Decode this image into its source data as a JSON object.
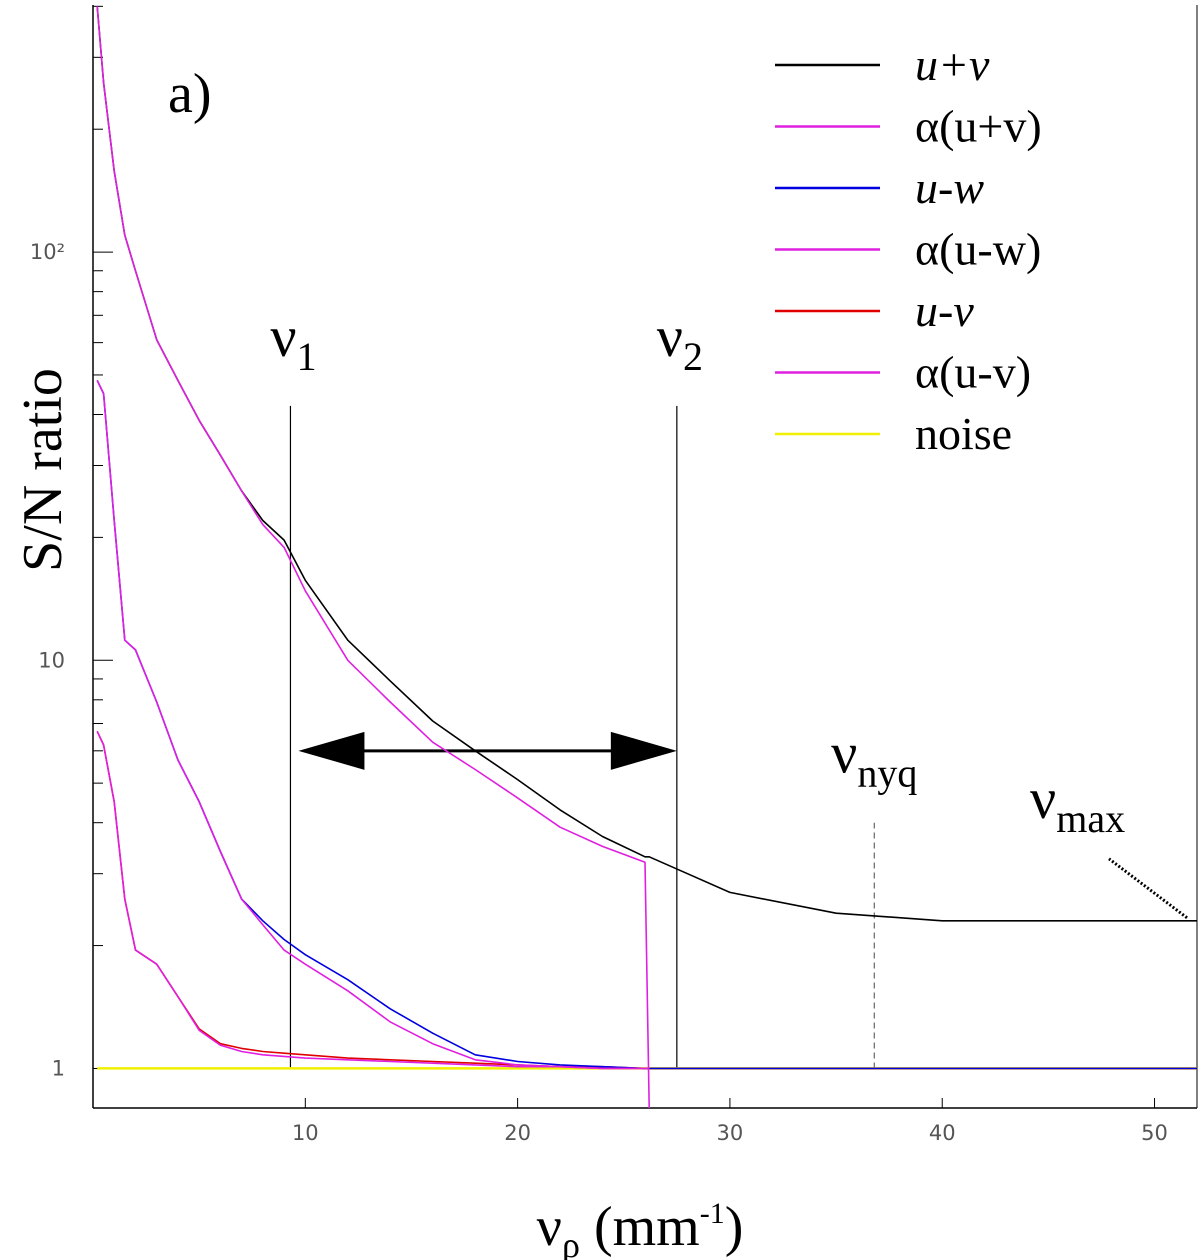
{
  "chart_data": {
    "type": "line",
    "panel_label": "a)",
    "ylabel": "S/N ratio",
    "xlabel": [
      "ν",
      "ρ",
      " (mm",
      "-1",
      ")"
    ],
    "yscale": "log",
    "legend": "upper right",
    "xlim": [
      0,
      52
    ],
    "ylim": [
      0.8,
      403
    ],
    "xticks": [
      10,
      20,
      30,
      40,
      50
    ],
    "yticks": [
      1,
      10,
      {
        "value": 100,
        "label": "10²"
      }
    ],
    "yminorticks": [
      2,
      3,
      4,
      5,
      6,
      7,
      8,
      9,
      20,
      30,
      40,
      50,
      60,
      70,
      80,
      90,
      200,
      300,
      400
    ],
    "x": [
      0.2,
      0.5,
      1,
      1.5,
      2,
      3,
      4,
      5,
      6,
      7,
      8,
      9,
      10,
      12,
      14,
      16,
      18,
      20,
      22,
      24,
      26,
      26.2,
      28,
      30,
      35,
      40,
      45,
      50,
      52
    ],
    "series": [
      {
        "name": "u+v",
        "color": "#000000",
        "values": [
          400,
          260,
          158,
          110,
          90,
          61,
          48.5,
          38.7,
          31.8,
          26,
          22,
          19.7,
          15.7,
          11.2,
          8.9,
          7.1,
          6.0,
          5.1,
          4.3,
          3.7,
          3.3,
          3.3,
          3.0,
          2.7,
          2.4,
          2.3,
          2.3,
          2.3,
          2.3
        ]
      },
      {
        "name": "α(u+v)",
        "color": "#e020e0",
        "values": [
          400,
          260,
          158,
          110,
          90,
          61,
          48.5,
          38.7,
          31.8,
          26,
          21.5,
          18.9,
          14.8,
          10.0,
          7.9,
          6.3,
          5.4,
          4.6,
          3.9,
          3.5,
          3.2,
          0.8,
          null,
          null,
          null,
          null,
          null,
          null,
          null
        ]
      },
      {
        "name": "u-w",
        "color": "#0000e0",
        "values": [
          48.5,
          45,
          22,
          11.2,
          10.6,
          7.9,
          5.7,
          4.5,
          3.4,
          2.6,
          2.3,
          2.07,
          1.9,
          1.65,
          1.4,
          1.22,
          1.08,
          1.04,
          1.02,
          1.01,
          1.0,
          1.0,
          1.0,
          1.0,
          1.0,
          1.0,
          1.0,
          1.0,
          1.0
        ]
      },
      {
        "name": "α(u-w)",
        "color": "#e020e0",
        "values": [
          48.5,
          45,
          22,
          11.2,
          10.6,
          7.9,
          5.7,
          4.5,
          3.4,
          2.6,
          2.25,
          1.95,
          1.8,
          1.55,
          1.3,
          1.15,
          1.05,
          1.02,
          1.01,
          1.0,
          1.0,
          1.0,
          null,
          null,
          null,
          null,
          null,
          null,
          null
        ]
      },
      {
        "name": "u-v",
        "color": "#e00000",
        "values": [
          6.7,
          6.2,
          4.5,
          2.6,
          1.95,
          1.8,
          1.5,
          1.25,
          1.15,
          1.12,
          1.1,
          1.09,
          1.08,
          1.06,
          1.05,
          1.04,
          1.03,
          1.02,
          1.01,
          1.01,
          1.0,
          1.0,
          1.0,
          1.0,
          1.0,
          1.0,
          1.0,
          1.0,
          1.0
        ]
      },
      {
        "name": "α(u-v)",
        "color": "#e020e0",
        "values": [
          6.7,
          6.2,
          4.5,
          2.6,
          1.95,
          1.8,
          1.5,
          1.24,
          1.14,
          1.1,
          1.08,
          1.07,
          1.06,
          1.05,
          1.04,
          1.03,
          1.02,
          1.01,
          1.01,
          1.0,
          1.0,
          1.0,
          null,
          null,
          null,
          null,
          null,
          null,
          null
        ]
      },
      {
        "name": "noise",
        "color": "#f0f000",
        "values": [
          1.0,
          1.0,
          1.0,
          1.0,
          1.0,
          1.0,
          1.0,
          1.0,
          1.0,
          1.0,
          1.0,
          1.0,
          1.0,
          1.0,
          1.0,
          1.0,
          1.0,
          1.0,
          1.0,
          1.0,
          1.0,
          1.0,
          1.0,
          1.0,
          1.0,
          1.0,
          1.0,
          1.0,
          1.0
        ]
      }
    ],
    "markers": [
      {
        "text": "ν",
        "sub": "1",
        "x": 9.3,
        "y": [
          1,
          42
        ],
        "style": "solid"
      },
      {
        "text": "ν",
        "sub": "2",
        "x": 27.5,
        "y": [
          1,
          42
        ],
        "style": "solid"
      },
      {
        "text": "ν",
        "sub": "nyq",
        "x": 36.8,
        "y": [
          1,
          4
        ],
        "style": "dashed"
      }
    ],
    "range_arrow": {
      "x": [
        9.3,
        27.5
      ],
      "y": 6
    },
    "max_label": {
      "text": "ν",
      "sub": "max",
      "x": 52,
      "y": 2.3
    }
  }
}
